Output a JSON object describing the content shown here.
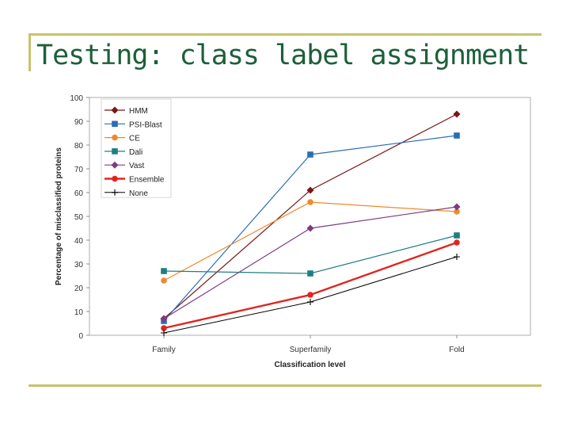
{
  "slide": {
    "title": "Testing: class label assignment"
  },
  "colors": {
    "accent_rule": "#c7c36b",
    "title_text": "#1d5f3a"
  },
  "chart_data": {
    "type": "line",
    "title": "",
    "xlabel": "Classification level",
    "ylabel": "Percentage of misclassified proteins",
    "categories": [
      "Family",
      "Superfamily",
      "Fold"
    ],
    "ylim": [
      0,
      100
    ],
    "yticks": [
      0,
      10,
      20,
      30,
      40,
      50,
      60,
      70,
      80,
      90,
      100
    ],
    "grid": false,
    "legend_position": "top-left",
    "series": [
      {
        "name": "HMM",
        "values": [
          7,
          61,
          93
        ],
        "color": "#7a1616",
        "marker": "diamond",
        "width": 1.2
      },
      {
        "name": "PSI-Blast",
        "values": [
          6,
          76,
          84
        ],
        "color": "#2a6db5",
        "marker": "square",
        "width": 1.2
      },
      {
        "name": "CE",
        "values": [
          23,
          56,
          52
        ],
        "color": "#ee8a2c",
        "marker": "circle",
        "width": 1.2
      },
      {
        "name": "Dali",
        "values": [
          27,
          26,
          42
        ],
        "color": "#1e7f82",
        "marker": "square",
        "width": 1.2
      },
      {
        "name": "Vast",
        "values": [
          7,
          45,
          54
        ],
        "color": "#7e3b7f",
        "marker": "diamond",
        "width": 1.2
      },
      {
        "name": "Ensemble",
        "values": [
          3,
          17,
          39
        ],
        "color": "#e0251f",
        "marker": "circle",
        "width": 2.4
      },
      {
        "name": "None",
        "values": [
          1,
          14,
          33
        ],
        "color": "#000000",
        "marker": "plus",
        "width": 1
      }
    ]
  }
}
